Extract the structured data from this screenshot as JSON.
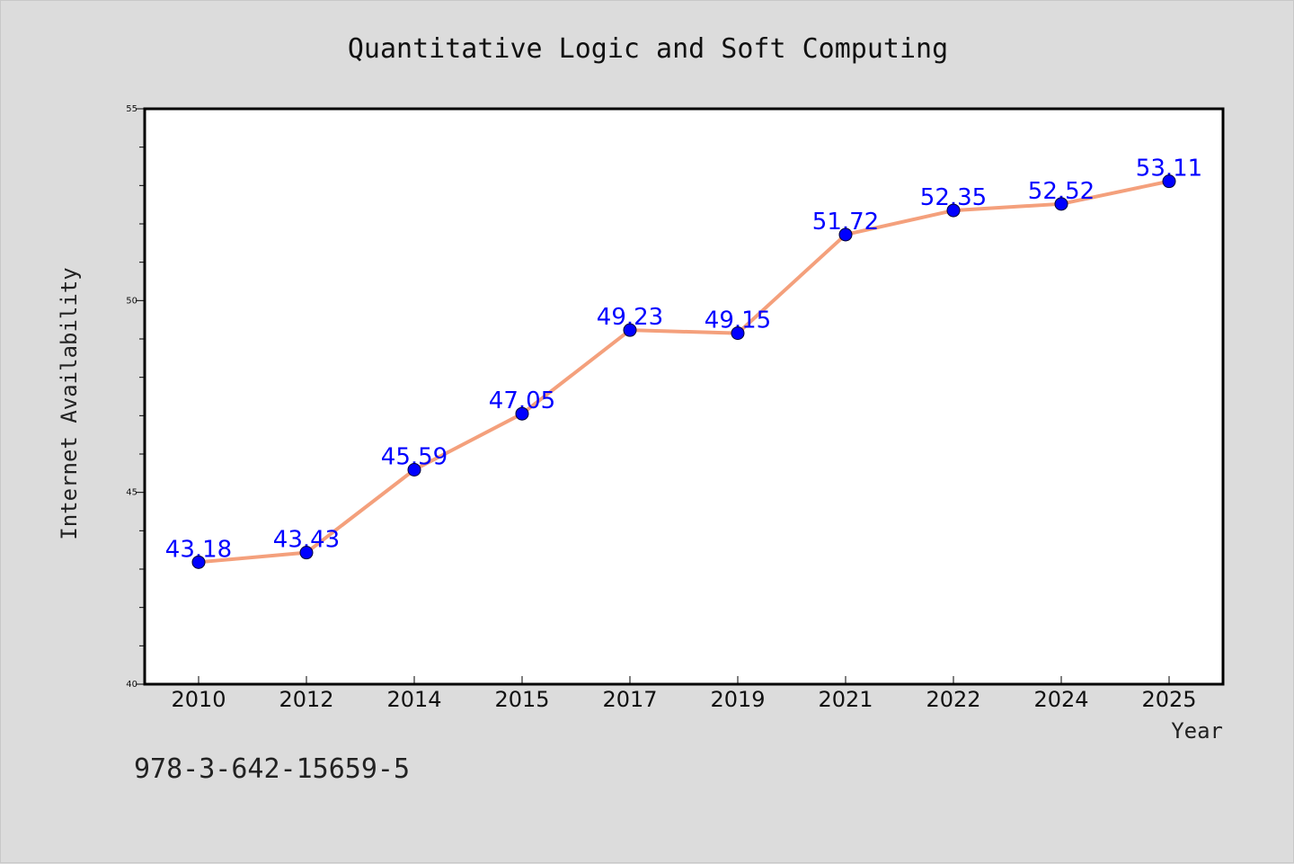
{
  "chart_data": {
    "type": "line",
    "title": "Quantitative Logic and Soft Computing",
    "xlabel": "Year",
    "ylabel": "Internet Availability",
    "categories": [
      "2010",
      "2012",
      "2014",
      "2015",
      "2017",
      "2019",
      "2021",
      "2022",
      "2024",
      "2025"
    ],
    "series": [
      {
        "values": [
          43.18,
          43.43,
          45.59,
          47.05,
          49.23,
          49.15,
          51.72,
          52.35,
          52.52,
          53.11
        ],
        "labels": [
          "43.18",
          "43.43",
          "45.59",
          "47.05",
          "49.23",
          "49.15",
          "51.72",
          "52.35",
          "52.52",
          "53.11"
        ],
        "line_color": "#f4a07c",
        "marker_color": "#0000ff"
      }
    ],
    "ylim": [
      40,
      55
    ],
    "y_ticks": [
      "40",
      "45",
      "50",
      "55"
    ],
    "grid": false,
    "legend": "none"
  },
  "footer": {
    "text": "978-3-642-15659-5"
  },
  "colors": {
    "background": "#dcdcdc",
    "plot_area": "#ffffff",
    "axis": "#000000"
  }
}
